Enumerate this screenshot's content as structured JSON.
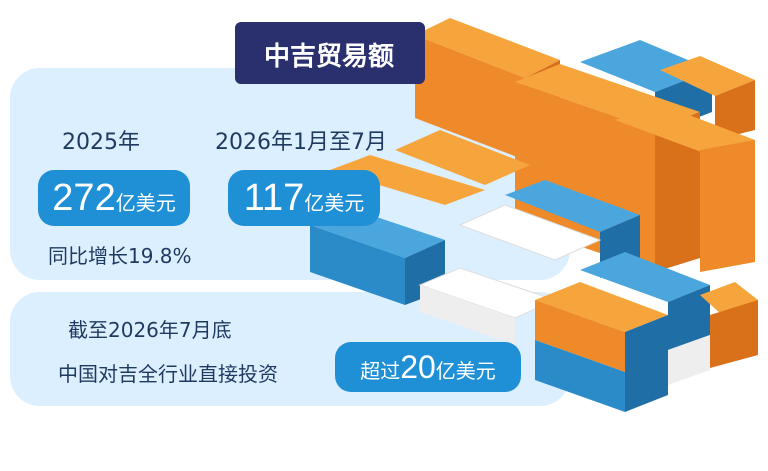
{
  "title": "中吉贸易额",
  "trade": [
    {
      "period": "2025年",
      "value": "272",
      "unit": "亿美元",
      "note": "同比增长19.8%"
    },
    {
      "period": "2026年1月至7月",
      "value": "117",
      "unit": "亿美元"
    }
  ],
  "investment": {
    "period": "截至2026年7月底",
    "label": "中国对吉全行业直接投资",
    "prefix": "超过",
    "value": "20",
    "unit": "亿美元"
  }
}
